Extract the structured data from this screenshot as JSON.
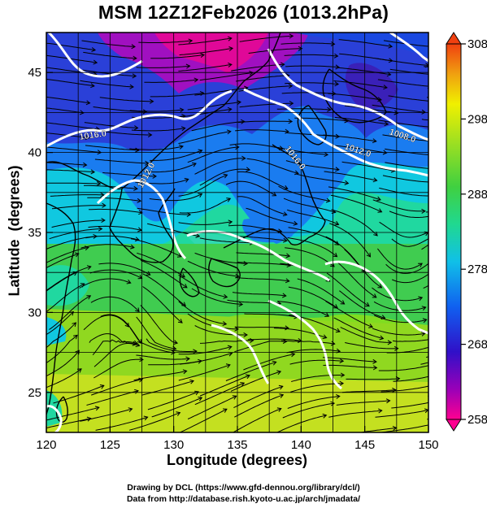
{
  "title": "MSM 12Z12Feb2026 (1013.2hPa)",
  "xaxis": {
    "label": "Longitude (degrees)",
    "ticks": [
      "120",
      "125",
      "130",
      "135",
      "140",
      "145",
      "150"
    ],
    "range": [
      120,
      150
    ]
  },
  "yaxis": {
    "label": "Latitude  (degrees)",
    "ticks": [
      "25",
      "30",
      "35",
      "40",
      "45"
    ],
    "range": [
      22.5,
      47.5
    ]
  },
  "colorbar": {
    "ticks": [
      "308",
      "298",
      "288",
      "278",
      "268",
      "258"
    ],
    "range": [
      258,
      308
    ],
    "colors": [
      "#ff0090",
      "#9a00b8",
      "#2020d8",
      "#1060f0",
      "#10c0e8",
      "#20d890",
      "#40d040",
      "#90dc20",
      "#f0f000",
      "#f0a010",
      "#f04010"
    ]
  },
  "contour_labels": [
    "1016.0",
    "1012.0",
    "1016.0",
    "1012.0",
    "1008.0"
  ],
  "colors": {
    "land": "#000000",
    "contour": "#ffffff",
    "grid": "#000000"
  },
  "credits": {
    "line1": "Drawing by DCL (https://www.gfd-dennou.org/library/dcl/)",
    "line2": "Data from http://database.rish.kyoto-u.ac.jp/arch/jmadata/"
  }
}
